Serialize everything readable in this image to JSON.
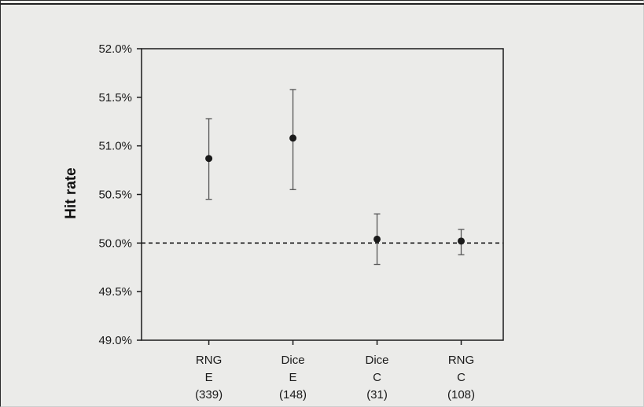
{
  "chart_data": {
    "type": "scatter",
    "ylabel": "Hit rate",
    "ylim": [
      49.0,
      52.0
    ],
    "y_ticks": [
      "52.0%",
      "51.5%",
      "51.0%",
      "50.5%",
      "50.0%",
      "49.5%",
      "49.0%"
    ],
    "y_tick_values": [
      52.0,
      51.5,
      51.0,
      50.5,
      50.0,
      49.5,
      49.0
    ],
    "reference_line": 50.0,
    "grid": false,
    "categories": [
      {
        "line1": "RNG",
        "line2": "E",
        "line3": "(339)",
        "mean": 50.87,
        "low": 50.45,
        "high": 51.28
      },
      {
        "line1": "Dice",
        "line2": "E",
        "line3": "(148)",
        "mean": 51.08,
        "low": 50.55,
        "high": 51.58
      },
      {
        "line1": "Dice",
        "line2": "C",
        "line3": "(31)",
        "mean": 50.04,
        "low": 49.78,
        "high": 50.3
      },
      {
        "line1": "RNG",
        "line2": "C",
        "line3": "(108)",
        "mean": 50.02,
        "low": 49.88,
        "high": 50.14
      }
    ]
  },
  "colors": {
    "ink": "#1a1a1a",
    "background": "#ebebe9"
  }
}
